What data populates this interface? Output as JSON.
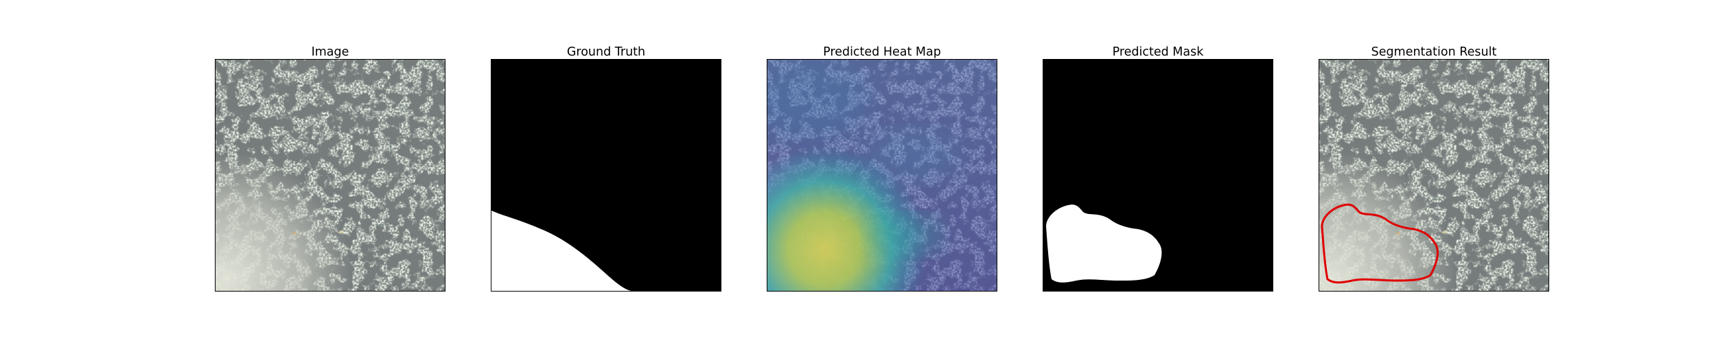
{
  "figure": {
    "panels": [
      {
        "id": "image",
        "title": "Image"
      },
      {
        "id": "ground-truth",
        "title": "Ground Truth"
      },
      {
        "id": "heatmap",
        "title": "Predicted Heat Map"
      },
      {
        "id": "predicted-mask",
        "title": "Predicted Mask"
      },
      {
        "id": "segmentation",
        "title": "Segmentation Result"
      }
    ],
    "colors": {
      "texture_base": "#7f8b86",
      "texture_spot": "#2f3332",
      "texture_bright": "#d7dbcf",
      "mask_fg": "#ffffff",
      "mask_bg": "#000000",
      "contour": "#e00000",
      "heat_low": "#3b3ea8",
      "heat_high": "#e5e045"
    }
  }
}
